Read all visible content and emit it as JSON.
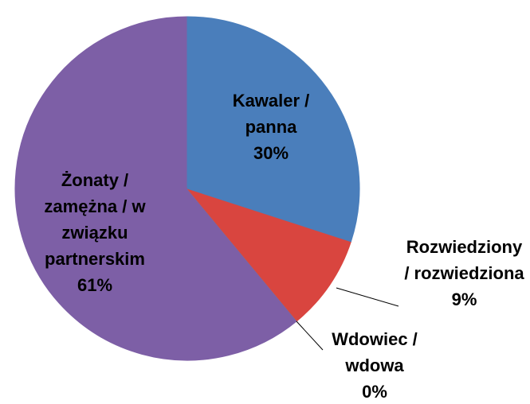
{
  "chart_data": {
    "type": "pie",
    "categories": [
      "Kawaler / panna",
      "Rozwiedziony / rozwiedziona",
      "Wdowiec / wdowa",
      "Żonaty / zamężna / w związku partnerskim"
    ],
    "values": [
      30,
      9,
      0,
      61
    ],
    "value_labels": [
      "30%",
      "9%",
      "0%",
      "61%"
    ],
    "colors": [
      "#4a7ebb",
      "#d9453f",
      "#8db14a",
      "#7d5fa6"
    ]
  }
}
